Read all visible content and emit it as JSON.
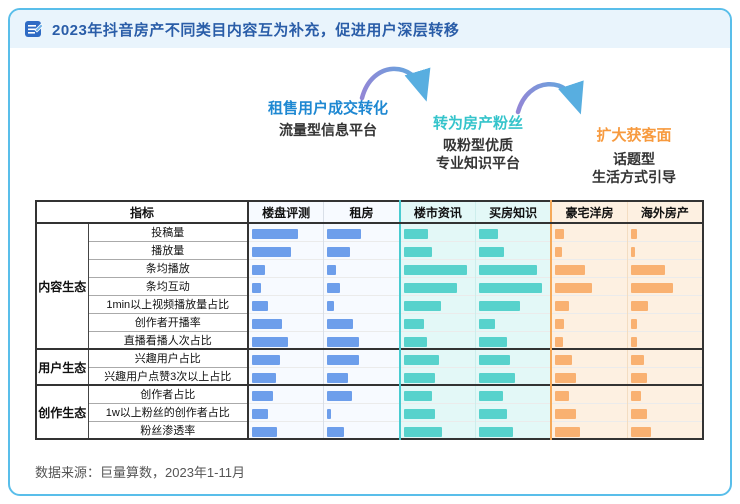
{
  "header": {
    "title": "2023年抖音房产不同类目内容互为补充，促进用户深层转移"
  },
  "funnel": {
    "stages": [
      {
        "title": "租售用户成交转化",
        "subtitle": "流量型信息平台",
        "color": "#1E88D2"
      },
      {
        "title": "转为房产粉丝",
        "subtitle": "吸粉型优质\n专业知识平台",
        "color": "#35C4CB"
      },
      {
        "title": "扩大获客面",
        "subtitle": "话题型\n生活方式引导",
        "color": "#F79A3E"
      }
    ]
  },
  "chart_data": {
    "type": "table",
    "title": "2023年抖音房产不同类目内容互为补充，促进用户深层转移",
    "header_label": "指标",
    "categories": [
      "楼盘评测",
      "租房",
      "楼市资讯",
      "买房知识",
      "豪宅洋房",
      "海外房产"
    ],
    "category_groups": [
      {
        "label": "流量型信息平台",
        "categories": [
          "楼盘评测",
          "租房"
        ],
        "bar_color": "#6D9EEB"
      },
      {
        "label": "吸粉型优质专业知识平台",
        "categories": [
          "楼市资讯",
          "买房知识"
        ],
        "bar_color": "#57D2CC"
      },
      {
        "label": "话题型生活方式引导",
        "categories": [
          "豪宅洋房",
          "海外房产"
        ],
        "bar_color": "#F9B171"
      }
    ],
    "value_note": "bar length as % of cell width (estimated from pixels; chart shows no numeric labels)",
    "row_groups": [
      {
        "name": "内容生态",
        "rows": [
          {
            "label": "投稿量",
            "values": [
              62,
              45,
              33,
              25,
              12,
              8
            ]
          },
          {
            "label": "播放量",
            "values": [
              52,
              30,
              38,
              33,
              9,
              6
            ]
          },
          {
            "label": "条均播放",
            "values": [
              18,
              12,
              85,
              78,
              40,
              46
            ]
          },
          {
            "label": "条均互动",
            "values": [
              12,
              17,
              72,
              85,
              50,
              57
            ]
          },
          {
            "label": "1min以上视频播放量占比",
            "values": [
              22,
              9,
              50,
              55,
              18,
              24
            ]
          },
          {
            "label": "创作者开播率",
            "values": [
              40,
              34,
              28,
              22,
              12,
              9
            ]
          },
          {
            "label": "直播看播人次占比",
            "values": [
              48,
              42,
              32,
              38,
              10,
              8
            ]
          }
        ]
      },
      {
        "name": "用户生态",
        "rows": [
          {
            "label": "兴趣用户占比",
            "values": [
              38,
              43,
              48,
              42,
              22,
              18
            ]
          },
          {
            "label": "兴趣用户点赞3次以上占比",
            "values": [
              32,
              28,
              42,
              48,
              28,
              22
            ]
          }
        ]
      },
      {
        "name": "创作生态",
        "rows": [
          {
            "label": "创作者占比",
            "values": [
              28,
              33,
              38,
              32,
              18,
              14
            ]
          },
          {
            "label": "1w以上粉丝的创作者占比",
            "values": [
              22,
              5,
              42,
              38,
              28,
              22
            ]
          },
          {
            "label": "粉丝渗透率",
            "values": [
              33,
              22,
              52,
              46,
              33,
              28
            ]
          }
        ]
      }
    ]
  },
  "footer": {
    "source": "数据来源：巨量算数，2023年1-11月"
  },
  "colors": {
    "card_border": "#59BEEA",
    "title_text": "#2A5DA8",
    "title_bar_bg": "#E9F4FC",
    "stage1": "#1E88D2",
    "stage2": "#35C4CB",
    "stage3": "#F79A3E",
    "bar_blue": "#6D9EEB",
    "bar_teal": "#57D2CC",
    "bar_orange": "#F9B171",
    "tint_blue": "#F7FAFF",
    "tint_teal": "#E3F8F7",
    "tint_orange": "#FDF0E1",
    "arrow_gradient_from": "#9287D6",
    "arrow_gradient_to": "#58AEE0"
  }
}
